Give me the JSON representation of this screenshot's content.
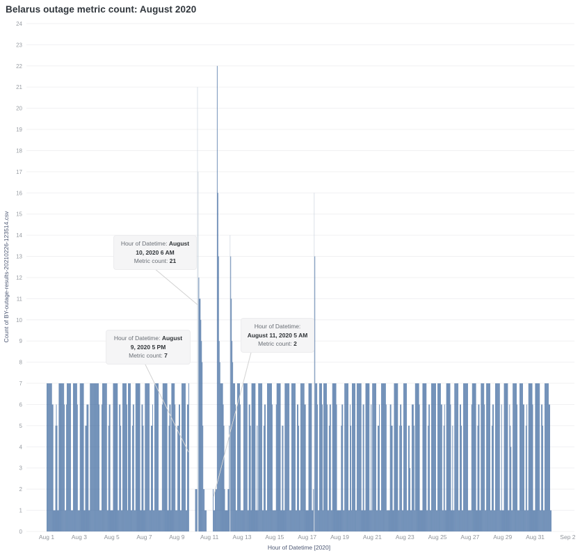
{
  "title": "Belarus outage metric count: August 2020",
  "chart_data": {
    "type": "bar",
    "title": "Belarus outage metric count: August 2020",
    "xlabel": "Hour of Datetime [2020]",
    "ylabel": "Count of BY-outage-results-20210226-123514.csv",
    "ylim": [
      0,
      24
    ],
    "grid": "horizontal",
    "bar_color": "#406a9f",
    "highlight_color": "#ccd5df",
    "y_ticks": [
      0,
      1,
      2,
      3,
      4,
      5,
      6,
      7,
      8,
      9,
      10,
      11,
      12,
      13,
      14,
      15,
      16,
      17,
      18,
      19,
      20,
      21,
      22,
      23,
      24
    ],
    "x_tick_labels": [
      "Aug 1",
      "Aug 3",
      "Aug 5",
      "Aug 7",
      "Aug 9",
      "Aug 11",
      "Aug 13",
      "Aug 15",
      "Aug 17",
      "Aug 19",
      "Aug 21",
      "Aug 23",
      "Aug 25",
      "Aug 27",
      "Aug 29",
      "Aug 31",
      "Sep 2"
    ],
    "days": [
      {
        "date": "Aug 1",
        "hours": [
          7,
          7,
          7,
          7,
          7,
          7,
          7,
          7,
          6,
          6,
          1,
          1,
          1,
          5,
          6,
          5,
          1,
          1,
          7,
          7,
          7,
          7,
          7,
          7
        ]
      },
      {
        "date": "Aug 2",
        "hours": [
          7,
          7,
          6,
          1,
          1,
          6,
          7,
          7,
          7,
          7,
          7,
          7,
          1,
          1,
          1,
          7,
          7,
          7,
          7,
          7,
          7,
          6,
          1,
          1
        ]
      },
      {
        "date": "Aug 3",
        "hours": [
          1,
          7,
          7,
          7,
          7,
          7,
          7,
          1,
          1,
          5,
          5,
          6,
          6,
          6,
          1,
          1,
          7,
          7,
          7,
          7,
          7,
          7,
          7,
          7
        ]
      },
      {
        "date": "Aug 4",
        "hours": [
          7,
          7,
          7,
          7,
          7,
          6,
          1,
          1,
          1,
          6,
          7,
          7,
          7,
          7,
          7,
          7,
          7,
          1,
          1,
          5,
          6,
          6,
          1,
          1
        ]
      },
      {
        "date": "Aug 5",
        "hours": [
          1,
          1,
          7,
          7,
          7,
          7,
          7,
          7,
          7,
          1,
          1,
          6,
          6,
          5,
          1,
          1,
          7,
          7,
          7,
          7,
          7,
          7,
          6,
          1
        ]
      },
      {
        "date": "Aug 6",
        "hours": [
          7,
          7,
          7,
          7,
          1,
          1,
          5,
          6,
          6,
          1,
          1,
          7,
          7,
          7,
          7,
          7,
          7,
          7,
          1,
          1,
          6,
          6,
          5,
          1
        ]
      },
      {
        "date": "Aug 7",
        "hours": [
          1,
          7,
          7,
          7,
          7,
          7,
          7,
          7,
          1,
          1,
          5,
          5,
          6,
          1,
          1,
          7,
          7,
          7,
          7,
          7,
          7,
          1,
          1,
          1
        ]
      },
      {
        "date": "Aug 8",
        "hours": [
          1,
          1,
          6,
          7,
          7,
          7,
          7,
          7,
          7,
          7,
          1,
          1,
          5,
          6,
          6,
          1,
          7,
          7,
          7,
          7,
          7,
          6,
          1,
          1
        ]
      },
      {
        "date": "Aug 9",
        "hours": [
          1,
          5,
          5,
          6,
          6,
          1,
          1,
          7,
          7,
          7,
          7,
          7,
          7,
          1,
          1,
          6,
          6,
          7,
          0,
          0,
          0,
          0,
          0,
          0
        ]
      },
      {
        "date": "Aug 10",
        "hours": [
          0,
          0,
          0,
          2,
          2,
          2,
          21,
          17,
          12,
          11,
          11,
          10,
          9,
          8,
          5,
          2,
          2,
          1,
          1,
          1,
          0,
          0,
          0,
          0
        ]
      },
      {
        "date": "Aug 11",
        "hours": [
          0,
          0,
          0,
          0,
          0,
          2,
          1,
          1,
          2,
          2,
          2,
          22,
          16,
          13,
          9,
          8,
          7,
          7,
          7,
          7,
          6,
          5,
          2,
          1
        ]
      },
      {
        "date": "Aug 12",
        "hours": [
          1,
          1,
          1,
          2,
          2,
          5,
          14,
          13,
          11,
          9,
          8,
          7,
          7,
          7,
          6,
          1,
          1,
          7,
          7,
          7,
          7,
          6,
          1,
          1
        ]
      },
      {
        "date": "Aug 13",
        "hours": [
          1,
          1,
          7,
          7,
          7,
          7,
          7,
          7,
          1,
          1,
          6,
          6,
          5,
          1,
          7,
          7,
          7,
          7,
          7,
          7,
          1,
          1,
          5,
          1
        ]
      },
      {
        "date": "Aug 14",
        "hours": [
          7,
          7,
          7,
          7,
          7,
          7,
          1,
          1,
          5,
          6,
          6,
          1,
          1,
          7,
          7,
          7,
          7,
          7,
          7,
          7,
          6,
          1,
          1,
          1
        ]
      },
      {
        "date": "Aug 15",
        "hours": [
          1,
          1,
          6,
          7,
          7,
          7,
          7,
          7,
          7,
          1,
          1,
          5,
          5,
          1,
          1,
          7,
          7,
          7,
          7,
          7,
          7,
          7,
          1,
          1
        ]
      },
      {
        "date": "Aug 16",
        "hours": [
          1,
          7,
          7,
          7,
          7,
          7,
          7,
          1,
          1,
          6,
          6,
          5,
          1,
          1,
          7,
          7,
          7,
          7,
          7,
          7,
          6,
          6,
          1,
          1
        ]
      },
      {
        "date": "Aug 17",
        "hours": [
          1,
          1,
          7,
          7,
          7,
          7,
          7,
          1,
          1,
          2,
          16,
          13,
          7,
          7,
          7,
          6,
          1,
          1,
          7,
          7,
          7,
          7,
          6,
          1
        ]
      },
      {
        "date": "Aug 18",
        "hours": [
          7,
          7,
          7,
          7,
          7,
          6,
          1,
          1,
          5,
          6,
          6,
          1,
          1,
          7,
          7,
          7,
          7,
          7,
          7,
          6,
          1,
          1,
          1,
          1
        ]
      },
      {
        "date": "Aug 19",
        "hours": [
          1,
          1,
          5,
          6,
          6,
          1,
          1,
          7,
          7,
          7,
          7,
          7,
          7,
          1,
          1,
          6,
          5,
          1,
          7,
          7,
          7,
          7,
          7,
          1
        ]
      },
      {
        "date": "Aug 20",
        "hours": [
          1,
          7,
          7,
          7,
          7,
          7,
          7,
          7,
          1,
          1,
          6,
          6,
          1,
          1,
          7,
          7,
          7,
          7,
          7,
          7,
          1,
          1,
          6,
          1
        ]
      },
      {
        "date": "Aug 21",
        "hours": [
          7,
          7,
          7,
          7,
          7,
          7,
          1,
          1,
          5,
          5,
          6,
          1,
          1,
          7,
          7,
          7,
          7,
          7,
          7,
          7,
          6,
          1,
          1,
          1
        ]
      },
      {
        "date": "Aug 22",
        "hours": [
          1,
          1,
          6,
          6,
          5,
          5,
          1,
          1,
          7,
          7,
          7,
          7,
          7,
          7,
          1,
          1,
          5,
          6,
          6,
          5,
          1,
          1,
          7,
          7
        ]
      },
      {
        "date": "Aug 23",
        "hours": [
          7,
          7,
          7,
          1,
          1,
          5,
          5,
          3,
          1,
          1,
          6,
          6,
          6,
          5,
          1,
          7,
          7,
          7,
          7,
          7,
          7,
          6,
          1,
          1
        ]
      },
      {
        "date": "Aug 24",
        "hours": [
          1,
          1,
          7,
          7,
          7,
          7,
          7,
          7,
          1,
          1,
          5,
          6,
          6,
          1,
          1,
          7,
          7,
          7,
          7,
          7,
          7,
          7,
          1,
          1
        ]
      },
      {
        "date": "Aug 25",
        "hours": [
          7,
          7,
          7,
          7,
          7,
          6,
          6,
          1,
          1,
          5,
          6,
          1,
          1,
          7,
          7,
          7,
          7,
          7,
          7,
          6,
          1,
          1,
          5,
          1
        ]
      },
      {
        "date": "Aug 26",
        "hours": [
          1,
          7,
          7,
          7,
          7,
          7,
          7,
          1,
          1,
          6,
          6,
          5,
          1,
          1,
          7,
          7,
          7,
          7,
          7,
          7,
          7,
          1,
          1,
          1
        ]
      },
      {
        "date": "Aug 27",
        "hours": [
          1,
          1,
          6,
          7,
          7,
          7,
          7,
          7,
          7,
          1,
          1,
          5,
          6,
          6,
          1,
          1,
          7,
          7,
          7,
          7,
          7,
          6,
          1,
          1
        ]
      },
      {
        "date": "Aug 28",
        "hours": [
          7,
          7,
          7,
          7,
          7,
          7,
          1,
          1,
          5,
          6,
          6,
          1,
          1,
          7,
          7,
          7,
          7,
          7,
          7,
          7,
          1,
          1,
          6,
          1
        ]
      },
      {
        "date": "Aug 29",
        "hours": [
          1,
          1,
          7,
          7,
          7,
          7,
          7,
          7,
          1,
          1,
          6,
          5,
          4,
          1,
          1,
          7,
          7,
          7,
          7,
          7,
          7,
          6,
          1,
          1
        ]
      },
      {
        "date": "Aug 30",
        "hours": [
          1,
          7,
          7,
          7,
          7,
          7,
          6,
          6,
          1,
          1,
          5,
          6,
          1,
          1,
          7,
          7,
          7,
          7,
          7,
          7,
          6,
          1,
          1,
          1
        ]
      },
      {
        "date": "Aug 31",
        "hours": [
          7,
          7,
          7,
          7,
          7,
          7,
          7,
          1,
          1,
          6,
          6,
          5,
          1,
          1,
          7,
          7,
          7,
          7,
          7,
          7,
          6,
          6,
          1,
          1
        ]
      }
    ],
    "highlighted_bars": [
      {
        "date": "Aug 10",
        "hour": 6
      },
      {
        "date": "Aug 10",
        "hour": 7
      },
      {
        "date": "Aug 12",
        "hour": 6
      },
      {
        "date": "Aug 17",
        "hour": 10
      }
    ],
    "annotations": [
      {
        "line1_prefix": "Hour of Datetime: ",
        "datetime": "August 10, 2020 6 AM",
        "line2_prefix": "Metric count: ",
        "count": "21"
      },
      {
        "line1_prefix": "Hour of Datetime: ",
        "datetime": "August 9, 2020 5 PM",
        "line2_prefix": "Metric count: ",
        "count": "7"
      },
      {
        "line1_prefix": "Hour of Datetime: ",
        "datetime": "August 11, 2020 5 AM",
        "line2_prefix": "Metric count: ",
        "count": "2"
      }
    ]
  }
}
